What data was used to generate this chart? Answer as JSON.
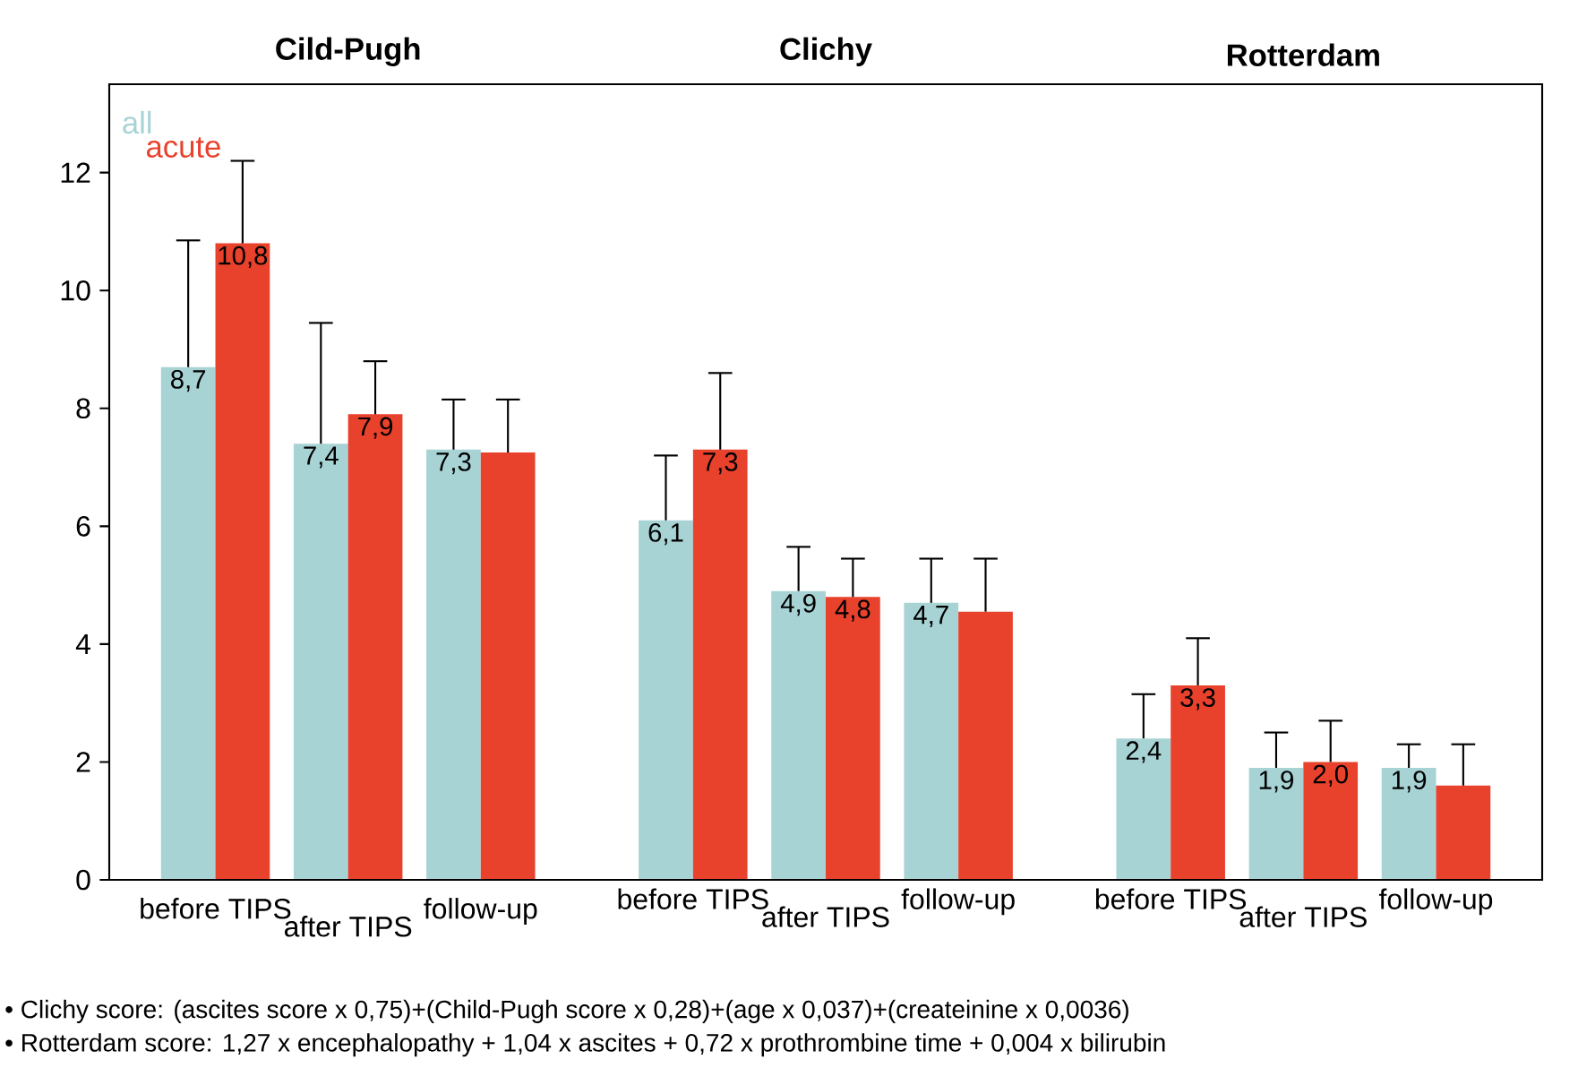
{
  "chart_data": [
    {
      "type": "bar",
      "title": "Cild-Pugh",
      "categories": [
        "before TIPS",
        "after TIPS",
        "follow-up"
      ],
      "ylim": [
        0,
        13.5
      ],
      "yticks": [
        0,
        2,
        4,
        6,
        8,
        10,
        12
      ],
      "legend": "top left",
      "series": [
        {
          "name": "all",
          "color": "#a8d3d5",
          "values": [
            8.7,
            7.4,
            7.3
          ],
          "errors": [
            [
              8.7,
              10.85
            ],
            [
              7.4,
              9.45
            ],
            [
              7.3,
              8.15
            ]
          ],
          "value_labels": [
            "8,7",
            "7,4",
            "7,3"
          ]
        },
        {
          "name": "acute",
          "color": "#e8412c",
          "values": [
            10.8,
            7.9,
            7.25
          ],
          "errors": [
            [
              10.8,
              12.2
            ],
            [
              7.9,
              8.8
            ],
            [
              7.25,
              8.15
            ]
          ],
          "value_labels": [
            "10,8",
            "7,9",
            null
          ]
        }
      ],
      "annotations": [
        "• Clichy score: (ascites score x 0,75)+(Child-Pugh score x 0,28)+(age x 0,037)+(createinine x 0,0036)",
        "• Rotterdam score: 1,27 x encephalopathy + 1,04 x ascites + 0,72 x prothrombine time + 0,004 x bilirubin"
      ]
    },
    {
      "type": "bar",
      "title": "Clichy",
      "categories": [
        "before TIPS",
        "after TIPS",
        "follow-up"
      ],
      "ylim": [
        0,
        13.5
      ],
      "tick_labels": "x",
      "series": [
        {
          "color": "#a8d3d5",
          "values": [
            6.1,
            4.9,
            4.7
          ],
          "errors": [
            [
              6.1,
              7.2
            ],
            [
              4.9,
              5.65
            ],
            [
              4.7,
              5.45
            ]
          ],
          "value_labels": [
            "6,1",
            "4,9",
            "4,7"
          ]
        },
        {
          "color": "#e8412c",
          "values": [
            7.3,
            4.8,
            4.55
          ],
          "errors": [
            [
              7.3,
              8.6
            ],
            [
              4.8,
              5.45
            ],
            [
              4.55,
              5.45
            ]
          ],
          "value_labels": [
            "7,3",
            "4,8",
            null
          ]
        }
      ]
    },
    {
      "type": "bar",
      "title": "Rotterdam",
      "categories": [
        "before TIPS",
        "after TIPS",
        "follow-up"
      ],
      "ylim": [
        0,
        13.5
      ],
      "tick_labels": "x",
      "series": [
        {
          "color": "#a8d3d5",
          "values": [
            2.4,
            1.9,
            1.9
          ],
          "errors": [
            [
              2.4,
              3.15
            ],
            [
              1.9,
              2.5
            ],
            [
              1.9,
              2.3
            ]
          ],
          "value_labels": [
            "2,4",
            "1,9",
            "1,9"
          ]
        },
        {
          "color": "#e8412c",
          "values": [
            3.3,
            2.0,
            1.6
          ],
          "errors": [
            [
              3.3,
              4.1
            ],
            [
              2.0,
              2.7
            ],
            [
              1.6,
              2.3
            ]
          ],
          "value_labels": [
            "3,3",
            "2,0",
            null
          ]
        }
      ]
    }
  ]
}
